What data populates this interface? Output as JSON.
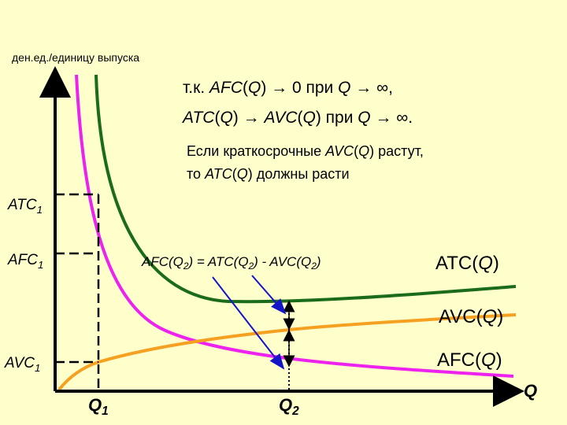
{
  "axis": {
    "y_label": "ден.ед./единицу выпуска",
    "x_label": "Q"
  },
  "note1": {
    "line1": [
      "т.к. ",
      "AFC",
      "(",
      "Q",
      ") → 0 при ",
      "Q",
      " → ∞,"
    ],
    "line2": [
      "ATC",
      "(",
      "Q",
      ") → ",
      "AVC",
      "(",
      "Q",
      ") при ",
      "Q",
      " → ∞."
    ]
  },
  "note2": {
    "line1": [
      "Если краткосрочные ",
      "AVC",
      "(",
      "Q",
      ") растут,"
    ],
    "line2": [
      "то  ",
      "ATC",
      "(",
      "Q",
      ") должны расти"
    ]
  },
  "levels": {
    "atc1": [
      "ATC",
      "1"
    ],
    "afc1": [
      "AFC",
      "1"
    ],
    "avc1": [
      "AVC",
      "1"
    ]
  },
  "identity": [
    "AFC(Q",
    "2",
    ") = ATC(Q",
    "2",
    ") - AVC(Q",
    "2",
    ")"
  ],
  "curves": {
    "atc": [
      "ATC(",
      "Q",
      ")"
    ],
    "avc": [
      "AVC(",
      "Q",
      ")"
    ],
    "afc": [
      "AFC(",
      "Q",
      ")"
    ]
  },
  "quantities": {
    "q1": [
      "Q",
      "1"
    ],
    "q2": [
      "Q",
      "2"
    ]
  }
}
